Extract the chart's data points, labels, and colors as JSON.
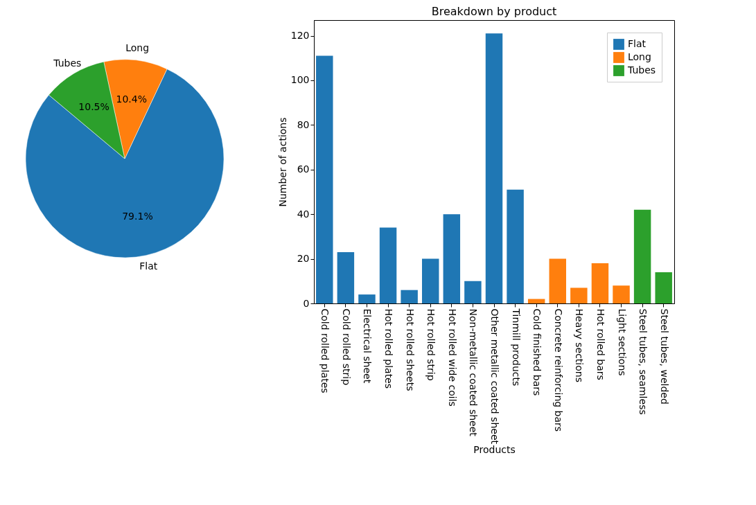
{
  "chart_data": [
    {
      "type": "pie",
      "categories": [
        "Flat",
        "Long",
        "Tubes"
      ],
      "values": [
        79.1,
        10.4,
        10.5
      ],
      "colors": [
        "#1f77b4",
        "#ff7f0e",
        "#2ca02c"
      ],
      "value_labels": [
        "79.1%",
        "10.4%",
        "10.5%"
      ],
      "legend": false
    },
    {
      "type": "bar",
      "title": "Breakdown by product",
      "xlabel": "Products",
      "ylabel": "Number of actions",
      "categories": [
        "Cold rolled plates",
        "Cold rolled strip",
        "Electrical sheet",
        "Hot rolled plates",
        "Hot rolled sheets",
        "Hot rolled strip",
        "Hot rolled wide coils",
        "Non-metallic coated sheet",
        "Other metallic coated sheet",
        "Tinmill products",
        "Cold finished bars",
        "Concrete reinforcing bars",
        "Heavy sections",
        "Hot rolled bars",
        "Light sections",
        "Steel tubes, seamless",
        "Steel tubes, welded"
      ],
      "series": [
        {
          "name": "Flat",
          "color": "#1f77b4",
          "values": [
            111,
            23,
            4,
            34,
            6,
            20,
            40,
            10,
            121,
            51,
            null,
            null,
            null,
            null,
            null,
            null,
            null
          ]
        },
        {
          "name": "Long",
          "color": "#ff7f0e",
          "values": [
            null,
            null,
            null,
            null,
            null,
            null,
            null,
            null,
            null,
            null,
            2,
            20,
            7,
            18,
            8,
            null,
            null
          ]
        },
        {
          "name": "Tubes",
          "color": "#2ca02c",
          "values": [
            null,
            null,
            null,
            null,
            null,
            null,
            null,
            null,
            null,
            null,
            null,
            null,
            null,
            null,
            null,
            42,
            14
          ]
        }
      ],
      "ylim": [
        0,
        127
      ],
      "yticks": [
        0,
        20,
        40,
        60,
        80,
        100,
        120
      ],
      "grid": false,
      "legend": "top right"
    }
  ]
}
